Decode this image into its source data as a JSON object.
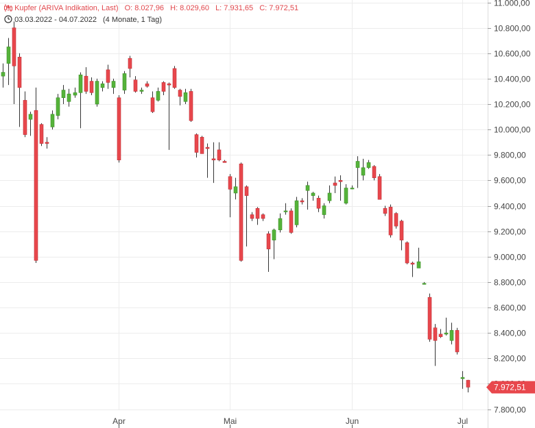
{
  "header": {
    "instrument": "Kupfer (ARIVA Indikation, Last)",
    "open": "O: 8.027,96",
    "high": "H: 8.029,60",
    "low": "L: 7.931,65",
    "close": "C: 7.972,51",
    "range": "03.03.2022 - 04.07.2022",
    "duration": "(4 Monate, 1 Tag)"
  },
  "colors": {
    "up": "#55b33a",
    "down": "#e8474c",
    "wick": "#333333",
    "grid": "#ececec",
    "price_tag": "#e8474c",
    "header_text": "#e0474c"
  },
  "icons": {
    "chart": "candlestick-chart-icon",
    "clock": "clock-icon"
  },
  "chart_data": {
    "type": "candlestick",
    "title": "Kupfer (ARIVA Indikation, Last)",
    "date_range": "03.03.2022 - 04.07.2022",
    "ylim": [
      7750,
      11000
    ],
    "y_ticks": [
      {
        "value": 11000,
        "label": "11.000,00"
      },
      {
        "value": 10800,
        "label": "10.800,00"
      },
      {
        "value": 10600,
        "label": "10.600,00"
      },
      {
        "value": 10400,
        "label": "10.400,00"
      },
      {
        "value": 10200,
        "label": "10.200,00"
      },
      {
        "value": 10000,
        "label": "10.000,00"
      },
      {
        "value": 9800,
        "label": "9.800,00"
      },
      {
        "value": 9600,
        "label": "9.600,00"
      },
      {
        "value": 9400,
        "label": "9.400,00"
      },
      {
        "value": 9200,
        "label": "9.200,00"
      },
      {
        "value": 9000,
        "label": "9.000,00"
      },
      {
        "value": 8800,
        "label": "8.800,00"
      },
      {
        "value": 8600,
        "label": "8.600,00"
      },
      {
        "value": 8400,
        "label": "8.400,00"
      },
      {
        "value": 8200,
        "label": "8.200,00"
      },
      {
        "value": 8000,
        "label": "8.000,00"
      },
      {
        "value": 7800,
        "label": "7.800,00"
      }
    ],
    "x_ticks": [
      {
        "date": "2022-04-01",
        "label": "Apr"
      },
      {
        "date": "2022-05-02",
        "label": "Mai"
      },
      {
        "date": "2022-06-01",
        "label": "Jun"
      },
      {
        "date": "2022-07-01",
        "label": "Jul"
      }
    ],
    "last_price": {
      "value": 7972.51,
      "label": "7.972,51"
    },
    "ohlc": [
      {
        "date": "2022-03-03",
        "open": 10420,
        "high": 10520,
        "low": 10330,
        "close": 10450
      },
      {
        "date": "2022-03-04",
        "open": 10520,
        "high": 10720,
        "low": 10350,
        "close": 10650
      },
      {
        "date": "2022-03-07",
        "open": 10800,
        "high": 10850,
        "low": 10200,
        "close": 10500
      },
      {
        "date": "2022-03-08",
        "open": 10570,
        "high": 10600,
        "low": 10020,
        "close": 10330
      },
      {
        "date": "2022-03-09",
        "open": 10230,
        "high": 10300,
        "low": 9940,
        "close": 9960
      },
      {
        "date": "2022-03-10",
        "open": 10080,
        "high": 10140,
        "low": 9950,
        "close": 10120
      },
      {
        "date": "2022-03-11",
        "open": 10150,
        "high": 10330,
        "low": 8950,
        "close": 8970
      },
      {
        "date": "2022-03-14",
        "open": 10040,
        "high": 10050,
        "low": 9870,
        "close": 9890
      },
      {
        "date": "2022-03-15",
        "open": 9900,
        "high": 9940,
        "low": 9850,
        "close": 9890
      },
      {
        "date": "2022-03-16",
        "open": 10020,
        "high": 10150,
        "low": 10000,
        "close": 10120
      },
      {
        "date": "2022-03-17",
        "open": 10110,
        "high": 10280,
        "low": 10080,
        "close": 10250
      },
      {
        "date": "2022-03-18",
        "open": 10250,
        "high": 10350,
        "low": 10200,
        "close": 10310
      },
      {
        "date": "2022-03-21",
        "open": 10220,
        "high": 10320,
        "low": 10180,
        "close": 10280
      },
      {
        "date": "2022-03-22",
        "open": 10270,
        "high": 10330,
        "low": 10250,
        "close": 10290
      },
      {
        "date": "2022-03-23",
        "open": 10290,
        "high": 10450,
        "low": 10010,
        "close": 10430
      },
      {
        "date": "2022-03-24",
        "open": 10420,
        "high": 10490,
        "low": 10280,
        "close": 10300
      },
      {
        "date": "2022-03-25",
        "open": 10380,
        "high": 10410,
        "low": 10270,
        "close": 10290
      },
      {
        "date": "2022-03-28",
        "open": 10200,
        "high": 10400,
        "low": 10180,
        "close": 10380
      },
      {
        "date": "2022-03-29",
        "open": 10330,
        "high": 10380,
        "low": 10300,
        "close": 10360
      },
      {
        "date": "2022-03-30",
        "open": 10470,
        "high": 10510,
        "low": 10320,
        "close": 10370
      },
      {
        "date": "2022-03-31",
        "open": 10330,
        "high": 10400,
        "low": 10280,
        "close": 10380
      },
      {
        "date": "2022-04-01",
        "open": 10250,
        "high": 10270,
        "low": 9740,
        "close": 9760
      },
      {
        "date": "2022-04-04",
        "open": 10310,
        "high": 10460,
        "low": 10280,
        "close": 10440
      },
      {
        "date": "2022-04-05",
        "open": 10560,
        "high": 10580,
        "low": 10410,
        "close": 10480
      },
      {
        "date": "2022-04-06",
        "open": 10390,
        "high": 10420,
        "low": 10290,
        "close": 10300
      },
      {
        "date": "2022-04-07",
        "open": 10300,
        "high": 10330,
        "low": 10280,
        "close": 10310
      },
      {
        "date": "2022-04-08",
        "open": 10360,
        "high": 10380,
        "low": 10330,
        "close": 10340
      },
      {
        "date": "2022-04-11",
        "open": 10250,
        "high": 10300,
        "low": 10130,
        "close": 10140
      },
      {
        "date": "2022-04-12",
        "open": 10230,
        "high": 10330,
        "low": 10220,
        "close": 10300
      },
      {
        "date": "2022-04-13",
        "open": 10370,
        "high": 10380,
        "low": 10270,
        "close": 10300
      },
      {
        "date": "2022-04-14",
        "open": 10360,
        "high": 10370,
        "low": 9840,
        "close": 10350
      },
      {
        "date": "2022-04-18",
        "open": 10480,
        "high": 10500,
        "low": 10320,
        "close": 10330
      },
      {
        "date": "2022-04-19",
        "open": 10310,
        "high": 10320,
        "low": 10190,
        "close": 10260
      },
      {
        "date": "2022-04-20",
        "open": 10220,
        "high": 10320,
        "low": 10200,
        "close": 10290
      },
      {
        "date": "2022-04-21",
        "open": 10300,
        "high": 10320,
        "low": 10060,
        "close": 10070
      },
      {
        "date": "2022-04-22",
        "open": 9960,
        "high": 9970,
        "low": 9780,
        "close": 9820
      },
      {
        "date": "2022-04-25",
        "open": 9940,
        "high": 9950,
        "low": 9810,
        "close": 9810
      },
      {
        "date": "2022-04-26",
        "open": 9860,
        "high": 9890,
        "low": 9620,
        "close": 9850
      },
      {
        "date": "2022-04-27",
        "open": 9770,
        "high": 9900,
        "low": 9580,
        "close": 9760
      },
      {
        "date": "2022-04-28",
        "open": 9840,
        "high": 9900,
        "low": 9750,
        "close": 9760
      },
      {
        "date": "2022-04-29",
        "open": 9750,
        "high": 9760,
        "low": 9740,
        "close": 9740
      },
      {
        "date": "2022-05-02",
        "open": 9630,
        "high": 9650,
        "low": 9310,
        "close": 9530
      },
      {
        "date": "2022-05-03",
        "open": 9500,
        "high": 9620,
        "low": 9450,
        "close": 9550
      },
      {
        "date": "2022-05-04",
        "open": 9730,
        "high": 9740,
        "low": 8960,
        "close": 8970
      },
      {
        "date": "2022-05-05",
        "open": 9550,
        "high": 9560,
        "low": 9080,
        "close": 9480
      },
      {
        "date": "2022-05-06",
        "open": 9330,
        "high": 9350,
        "low": 9280,
        "close": 9300
      },
      {
        "date": "2022-05-09",
        "open": 9380,
        "high": 9390,
        "low": 9250,
        "close": 9300
      },
      {
        "date": "2022-05-10",
        "open": 9330,
        "high": 9340,
        "low": 9280,
        "close": 9300
      },
      {
        "date": "2022-05-11",
        "open": 9180,
        "high": 9200,
        "low": 8880,
        "close": 9060
      },
      {
        "date": "2022-05-12",
        "open": 9130,
        "high": 9220,
        "low": 8980,
        "close": 9210
      },
      {
        "date": "2022-05-13",
        "open": 9210,
        "high": 9340,
        "low": 9190,
        "close": 9300
      },
      {
        "date": "2022-05-16",
        "open": 9360,
        "high": 9420,
        "low": 9330,
        "close": 9360
      },
      {
        "date": "2022-05-17",
        "open": 9360,
        "high": 9380,
        "low": 9180,
        "close": 9190
      },
      {
        "date": "2022-05-18",
        "open": 9250,
        "high": 9470,
        "low": 9230,
        "close": 9440
      },
      {
        "date": "2022-05-19",
        "open": 9440,
        "high": 9460,
        "low": 9410,
        "close": 9430
      },
      {
        "date": "2022-05-20",
        "open": 9520,
        "high": 9590,
        "low": 9370,
        "close": 9560
      },
      {
        "date": "2022-05-23",
        "open": 9480,
        "high": 9510,
        "low": 9440,
        "close": 9500
      },
      {
        "date": "2022-05-24",
        "open": 9460,
        "high": 9480,
        "low": 9350,
        "close": 9380
      },
      {
        "date": "2022-05-25",
        "open": 9330,
        "high": 9420,
        "low": 9300,
        "close": 9400
      },
      {
        "date": "2022-05-26",
        "open": 9440,
        "high": 9560,
        "low": 9420,
        "close": 9500
      },
      {
        "date": "2022-05-27",
        "open": 9580,
        "high": 9630,
        "low": 9500,
        "close": 9560
      },
      {
        "date": "2022-05-30",
        "open": 9600,
        "high": 9640,
        "low": 9440,
        "close": 9590
      },
      {
        "date": "2022-05-31",
        "open": 9420,
        "high": 9570,
        "low": 9410,
        "close": 9540
      },
      {
        "date": "2022-06-01",
        "open": 9540,
        "high": 9560,
        "low": 9530,
        "close": 9540
      },
      {
        "date": "2022-06-02",
        "open": 9700,
        "high": 9790,
        "low": 9540,
        "close": 9750
      },
      {
        "date": "2022-06-03",
        "open": 9640,
        "high": 9770,
        "low": 9600,
        "close": 9700
      },
      {
        "date": "2022-06-06",
        "open": 9700,
        "high": 9760,
        "low": 9690,
        "close": 9740
      },
      {
        "date": "2022-06-07",
        "open": 9710,
        "high": 9720,
        "low": 9600,
        "close": 9620
      },
      {
        "date": "2022-06-08",
        "open": 9630,
        "high": 9650,
        "low": 9450,
        "close": 9450
      },
      {
        "date": "2022-06-09",
        "open": 9380,
        "high": 9400,
        "low": 9320,
        "close": 9340
      },
      {
        "date": "2022-06-10",
        "open": 9390,
        "high": 9410,
        "low": 9150,
        "close": 9170
      },
      {
        "date": "2022-06-13",
        "open": 9340,
        "high": 9350,
        "low": 9220,
        "close": 9240
      },
      {
        "date": "2022-06-14",
        "open": 9280,
        "high": 9290,
        "low": 9050,
        "close": 9130
      },
      {
        "date": "2022-06-15",
        "open": 9110,
        "high": 9120,
        "low": 8940,
        "close": 8950
      },
      {
        "date": "2022-06-16",
        "open": 8950,
        "high": 8960,
        "low": 8840,
        "close": 8940
      },
      {
        "date": "2022-06-17",
        "open": 8910,
        "high": 9070,
        "low": 8910,
        "close": 8960
      },
      {
        "date": "2022-06-20",
        "open": 8790,
        "high": 8800,
        "low": 8780,
        "close": 8790
      },
      {
        "date": "2022-06-21",
        "open": 8680,
        "high": 8710,
        "low": 8330,
        "close": 8350
      },
      {
        "date": "2022-06-22",
        "open": 8440,
        "high": 8470,
        "low": 8140,
        "close": 8340
      },
      {
        "date": "2022-06-23",
        "open": 8390,
        "high": 8430,
        "low": 8360,
        "close": 8370
      },
      {
        "date": "2022-06-24",
        "open": 8390,
        "high": 8520,
        "low": 8380,
        "close": 8400
      },
      {
        "date": "2022-06-27",
        "open": 8340,
        "high": 8480,
        "low": 8310,
        "close": 8420
      },
      {
        "date": "2022-06-28",
        "open": 8420,
        "high": 8440,
        "low": 8230,
        "close": 8250
      },
      {
        "date": "2022-07-01",
        "open": 8040,
        "high": 8100,
        "low": 7960,
        "close": 8050
      },
      {
        "date": "2022-07-04",
        "open": 8028,
        "high": 8030,
        "low": 7932,
        "close": 7973
      }
    ]
  }
}
